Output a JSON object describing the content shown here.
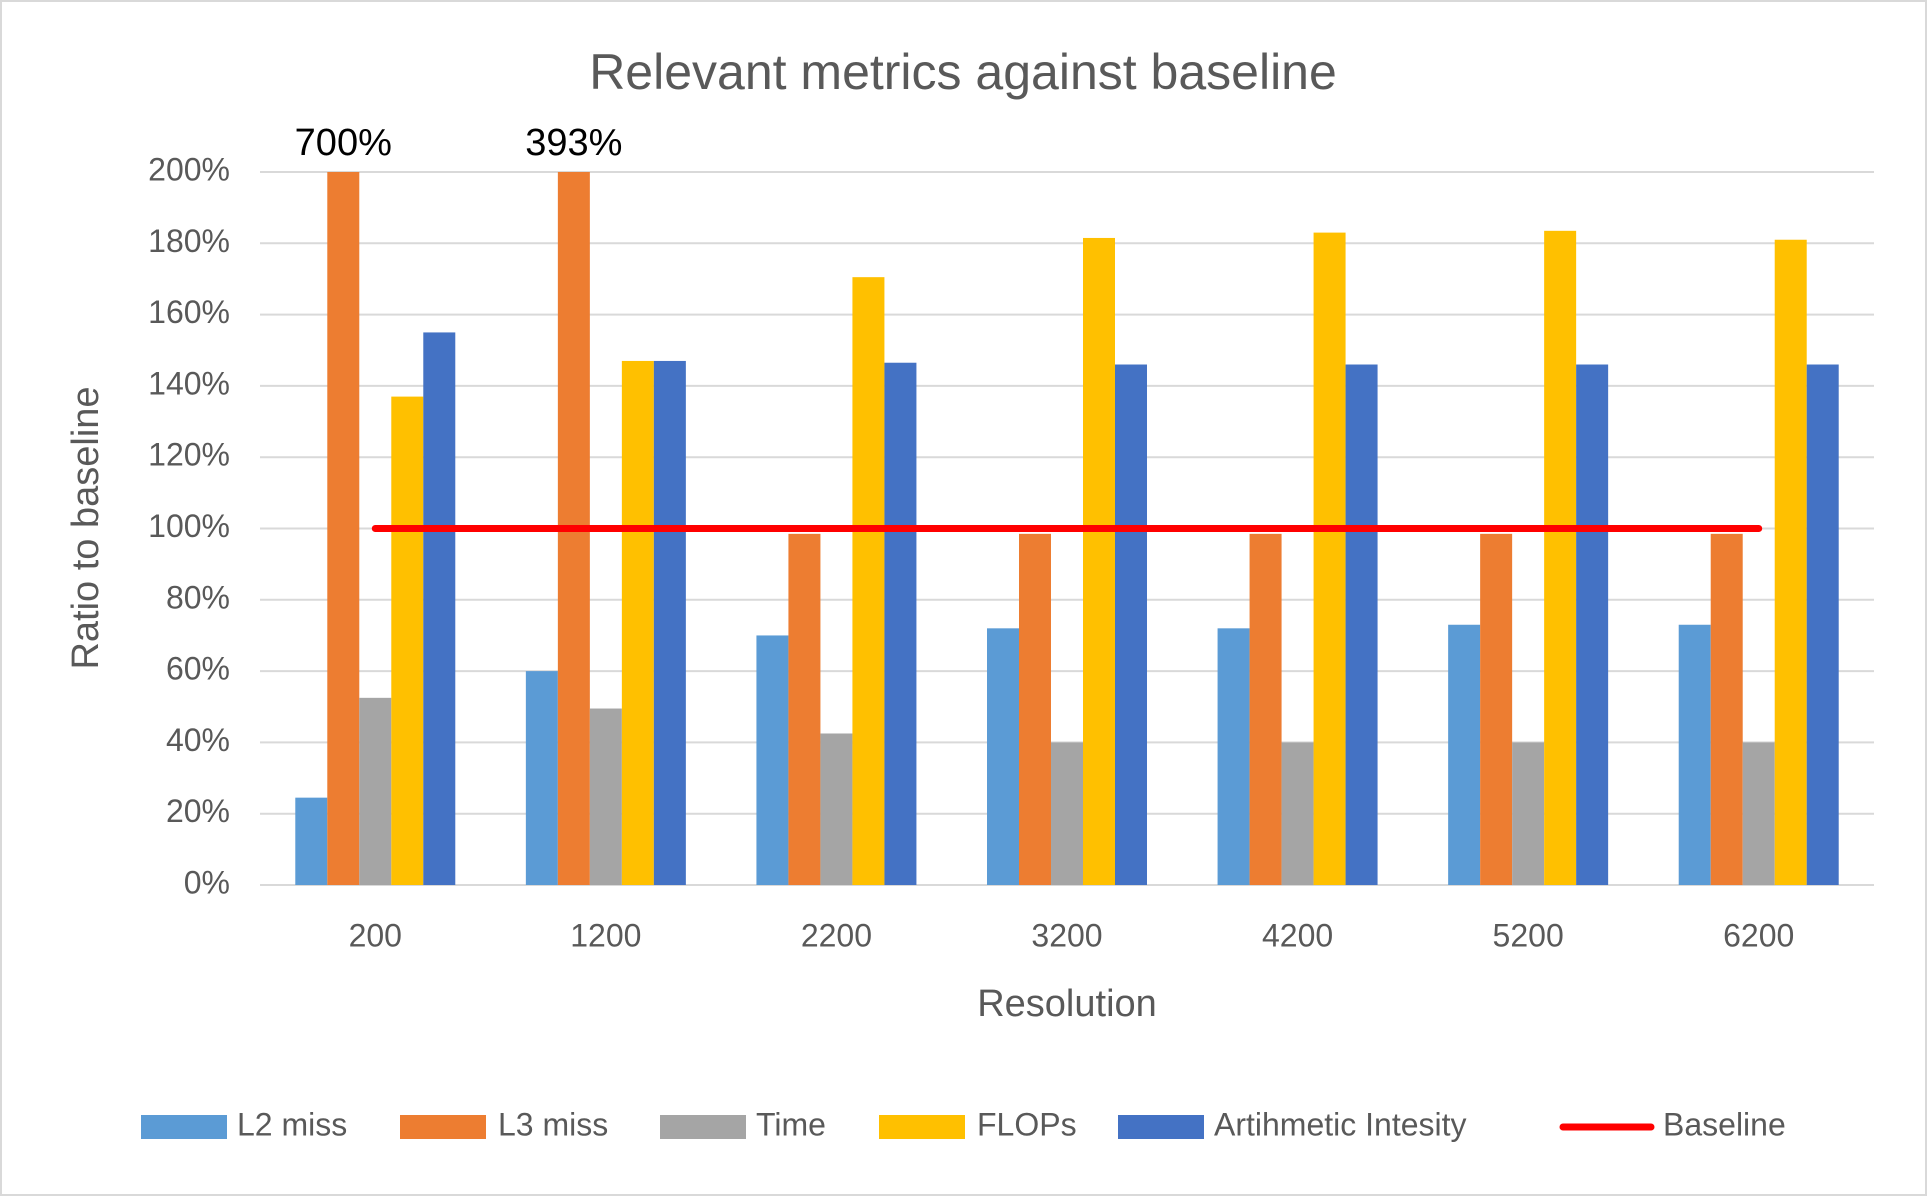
{
  "chart_data": {
    "type": "bar",
    "title": "Relevant metrics against baseline",
    "x_label": "Resolution",
    "y_label": "Ratio to baseline",
    "categories": [
      "200",
      "1200",
      "2200",
      "3200",
      "4200",
      "5200",
      "6200"
    ],
    "series": [
      {
        "name": "L2 miss",
        "color": "#5b9bd5",
        "values": [
          24.5,
          60,
          70,
          72,
          72,
          73,
          73
        ]
      },
      {
        "name": "L3 miss",
        "color": "#ed7d31",
        "values": [
          700,
          393,
          98.5,
          98.5,
          98.5,
          98.5,
          98.5
        ],
        "value_labels": [
          "700%",
          "393%",
          null,
          null,
          null,
          null,
          null
        ]
      },
      {
        "name": "Time",
        "color": "#a5a5a5",
        "values": [
          52.5,
          49.5,
          42.5,
          40,
          40,
          40,
          40
        ]
      },
      {
        "name": "FLOPs",
        "color": "#ffc000",
        "values": [
          137,
          147,
          170.5,
          181.5,
          183,
          183.5,
          181
        ]
      },
      {
        "name": "Artihmetic Intesity",
        "color": "#4472c4",
        "values": [
          155,
          147,
          146.5,
          146,
          146,
          146,
          146
        ]
      },
      {
        "name": "Baseline",
        "color": "#ff0000",
        "type": "line",
        "values": [
          100,
          100,
          100,
          100,
          100,
          100,
          100
        ]
      }
    ],
    "ylim": [
      0,
      200
    ],
    "yticks": [
      {
        "value": 0,
        "label": "0%"
      },
      {
        "value": 20,
        "label": "20%"
      },
      {
        "value": 40,
        "label": "40%"
      },
      {
        "value": 60,
        "label": "60%"
      },
      {
        "value": 80,
        "label": "80%"
      },
      {
        "value": 100,
        "label": "100%"
      },
      {
        "value": 120,
        "label": "120%"
      },
      {
        "value": 140,
        "label": "140%"
      },
      {
        "value": 160,
        "label": "160%"
      },
      {
        "value": 180,
        "label": "180%"
      },
      {
        "value": 200,
        "label": "200%"
      }
    ],
    "grid": true,
    "legend": "bottom"
  }
}
